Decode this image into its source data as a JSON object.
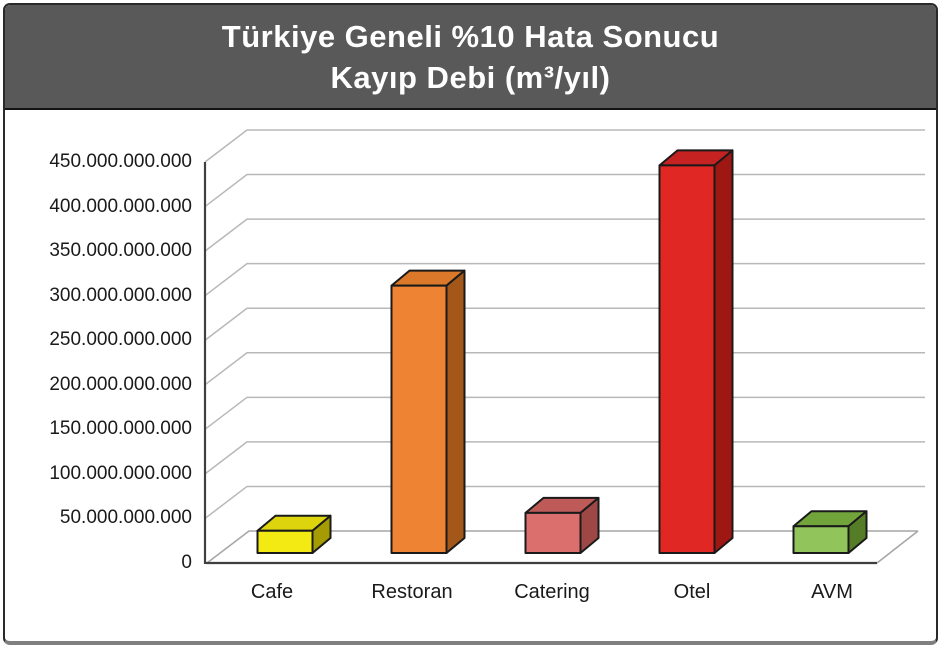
{
  "header": {
    "title_line1": "Türkiye Geneli %10 Hata Sonucu",
    "title_line2": "Kayıp Debi (m³/yıl)",
    "band_color": "#595959",
    "text_color": "#ffffff"
  },
  "chart_data": {
    "type": "bar",
    "style": "3d-column",
    "title": "Türkiye Geneli %10 Hata Sonucu Kayıp Debi (m³/yıl)",
    "categories": [
      "Cafe",
      "Restoran",
      "Catering",
      "Otel",
      "AVM"
    ],
    "values": [
      25000000000,
      300000000000,
      45000000000,
      435000000000,
      30000000000
    ],
    "y_axis": {
      "min": 0,
      "max": 450000000000,
      "tick_step": 50000000000,
      "tick_labels": [
        "0",
        "50.000.000.000",
        "100.000.000.000",
        "150.000.000.000",
        "200.000.000.000",
        "250.000.000.000",
        "300.000.000.000",
        "350.000.000.000",
        "400.000.000.000",
        "450.000.000.000"
      ]
    },
    "grid": true,
    "legend": false,
    "bar_colors": [
      {
        "front": "#F2EA12",
        "top": "#DDD40D",
        "side": "#A59C03"
      },
      {
        "front": "#EE8433",
        "top": "#DB782A",
        "side": "#A3581A"
      },
      {
        "front": "#DA6F6E",
        "top": "#BE5B59",
        "side": "#9E4846"
      },
      {
        "front": "#E12723",
        "top": "#C62221",
        "side": "#9E1713"
      },
      {
        "front": "#91C55B",
        "top": "#72A43C",
        "side": "#557D27"
      }
    ],
    "outline_color": "#1a1a1a",
    "gridline_color": "#b8b8b8",
    "wall_edge_color": "#a6a6a6",
    "axis_color": "#3f3f3f"
  }
}
